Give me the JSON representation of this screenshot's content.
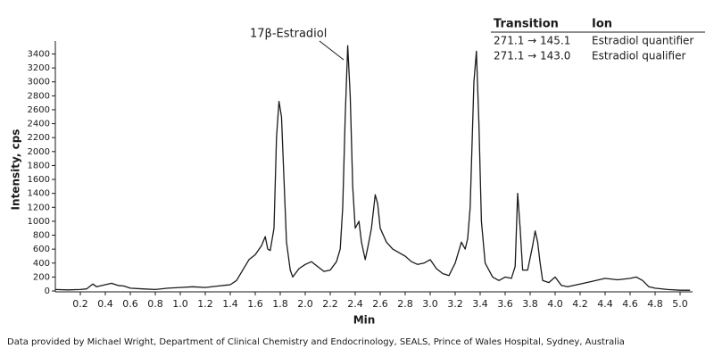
{
  "chart_data": {
    "type": "line",
    "y_label": "Intensity, cps",
    "x_label": "Min",
    "annotation": "17β-Estradiol",
    "table": {
      "columns": [
        "Transition",
        "Ion"
      ],
      "rows": [
        [
          "271.1 → 145.1",
          "Estradiol quantifier"
        ],
        [
          "271.1 → 143.0",
          "Estradiol qualifier"
        ]
      ]
    },
    "source": "Data provided by Michael Wright, Department of Clinical Chemistry and Endocrinology, SEALS, Prince of Wales Hospital, Sydney, Australia",
    "x": [
      0.0,
      0.1,
      0.2,
      0.25,
      0.3,
      0.33,
      0.4,
      0.45,
      0.5,
      0.55,
      0.6,
      0.7,
      0.8,
      0.9,
      1.0,
      1.1,
      1.2,
      1.3,
      1.4,
      1.45,
      1.5,
      1.55,
      1.6,
      1.65,
      1.68,
      1.7,
      1.72,
      1.75,
      1.77,
      1.79,
      1.81,
      1.83,
      1.85,
      1.88,
      1.9,
      1.95,
      2.0,
      2.05,
      2.1,
      2.15,
      2.2,
      2.25,
      2.28,
      2.3,
      2.32,
      2.34,
      2.36,
      2.38,
      2.4,
      2.43,
      2.45,
      2.48,
      2.5,
      2.53,
      2.56,
      2.58,
      2.6,
      2.65,
      2.7,
      2.75,
      2.8,
      2.85,
      2.9,
      2.95,
      3.0,
      3.05,
      3.1,
      3.15,
      3.2,
      3.25,
      3.28,
      3.3,
      3.32,
      3.35,
      3.37,
      3.39,
      3.41,
      3.44,
      3.5,
      3.55,
      3.6,
      3.65,
      3.68,
      3.7,
      3.72,
      3.74,
      3.78,
      3.82,
      3.84,
      3.86,
      3.88,
      3.9,
      3.95,
      4.0,
      4.05,
      4.1,
      4.2,
      4.3,
      4.4,
      4.5,
      4.6,
      4.65,
      4.7,
      4.75,
      4.8,
      4.9,
      5.0,
      5.08
    ],
    "series": [
      {
        "color": "#1a1a1a",
        "values": [
          20,
          15,
          20,
          30,
          100,
          60,
          90,
          110,
          80,
          70,
          40,
          30,
          20,
          40,
          50,
          60,
          50,
          70,
          90,
          150,
          300,
          450,
          520,
          650,
          780,
          600,
          580,
          900,
          2200,
          2720,
          2500,
          1600,
          700,
          300,
          200,
          320,
          380,
          420,
          350,
          280,
          300,
          420,
          600,
          1200,
          2500,
          3520,
          2800,
          1500,
          900,
          1000,
          700,
          450,
          620,
          900,
          1380,
          1250,
          900,
          700,
          600,
          550,
          500,
          420,
          380,
          400,
          450,
          320,
          250,
          220,
          400,
          700,
          600,
          750,
          1200,
          3000,
          3440,
          2400,
          1000,
          400,
          200,
          150,
          200,
          180,
          350,
          1400,
          900,
          300,
          300,
          650,
          860,
          700,
          400,
          150,
          120,
          200,
          80,
          60,
          100,
          140,
          180,
          160,
          180,
          200,
          150,
          60,
          40,
          20,
          10,
          10
        ]
      }
    ],
    "xlim": [
      0,
      5.1
    ],
    "ylim": [
      0,
      3560
    ],
    "xticks": [
      0.2,
      0.4,
      0.6,
      0.8,
      {
        "value": 1,
        "label": "1.0"
      },
      1.2,
      1.4,
      1.6,
      1.8,
      {
        "value": 2,
        "label": "2.0"
      },
      2.2,
      2.4,
      2.6,
      2.8,
      {
        "value": 3,
        "label": "3.0"
      },
      3.2,
      3.4,
      3.6,
      3.8,
      {
        "value": 4,
        "label": "4.0"
      },
      4.2,
      4.4,
      4.6,
      4.8,
      {
        "value": 5,
        "label": "5.0"
      }
    ],
    "yticks": [
      0,
      200,
      400,
      600,
      800,
      1000,
      1200,
      1400,
      1600,
      1800,
      2000,
      2200,
      2400,
      2600,
      2800,
      3000,
      3200,
      3400
    ]
  }
}
